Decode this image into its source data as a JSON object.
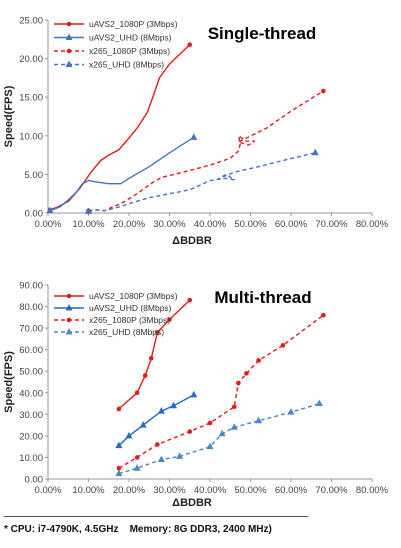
{
  "chart_data": [
    {
      "type": "line",
      "title": "Single-thread",
      "xlabel": "ΔBDBR",
      "ylabel": "Speed(FPS)",
      "xlim": [
        0,
        80
      ],
      "ylim": [
        0,
        25
      ],
      "x_ticks": [
        "0.00%",
        "10.00%",
        "20.00%",
        "30.00%",
        "40.00%",
        "50.00%",
        "60.00%",
        "70.00%",
        "80.00%"
      ],
      "y_ticks": [
        "0.00",
        "5.00",
        "10.00",
        "15.00",
        "20.00",
        "25.00"
      ],
      "legend_position": "top-left",
      "series": [
        {
          "name": "uAVS2_1080P (3Mbps)",
          "color": "#e21b1b",
          "dash": "solid",
          "marker": "circle",
          "points": [
            [
              0.5,
              0.4
            ],
            [
              2.5,
              0.8
            ],
            [
              5,
              1.5
            ],
            [
              8,
              3.3
            ],
            [
              10.5,
              5.2
            ],
            [
              13,
              6.8
            ],
            [
              15,
              7.5
            ],
            [
              17.5,
              8.2
            ],
            [
              20,
              9.7
            ],
            [
              22,
              11
            ],
            [
              24.5,
              13
            ],
            [
              26,
              15.2
            ],
            [
              27.5,
              17.5
            ],
            [
              30,
              19.3
            ],
            [
              32,
              20.3
            ],
            [
              35,
              21.8
            ]
          ]
        },
        {
          "name": "uAVS2_UHD (8Mbps)",
          "color": "#4472c4",
          "dash": "solid",
          "marker": "triangle",
          "points": [
            [
              0.5,
              0.3
            ],
            [
              3,
              0.8
            ],
            [
              5,
              1.7
            ],
            [
              7,
              2.7
            ],
            [
              8.5,
              3.8
            ],
            [
              10,
              4.2
            ],
            [
              12,
              4
            ],
            [
              15,
              3.8
            ],
            [
              18,
              3.8
            ],
            [
              20,
              4.5
            ],
            [
              25,
              6
            ],
            [
              30,
              7.8
            ],
            [
              36,
              9.8
            ]
          ]
        },
        {
          "name": "x265_1080P (3Mbps)",
          "color": "#e21b1b",
          "dash": "dashed",
          "marker": "circle",
          "points": [
            [
              10,
              0.3
            ],
            [
              12,
              0.4
            ],
            [
              14,
              0.3
            ],
            [
              16,
              0.8
            ],
            [
              18,
              1.2
            ],
            [
              22,
              2.5
            ],
            [
              26,
              4
            ],
            [
              28,
              4.6
            ],
            [
              35,
              5.5
            ],
            [
              40,
              6.2
            ],
            [
              45,
              7.1
            ],
            [
              47,
              8
            ],
            [
              47.5,
              9
            ],
            [
              47,
              10
            ],
            [
              49,
              9.3
            ],
            [
              51,
              9.3
            ],
            [
              49.5,
              8.8
            ],
            [
              47,
              9.2
            ],
            [
              54,
              11
            ],
            [
              60,
              13.2
            ],
            [
              68,
              15.8
            ]
          ]
        },
        {
          "name": "x265_UHD (8Mbps)",
          "color": "#4472c4",
          "dash": "dashed",
          "marker": "triangle",
          "points": [
            [
              10,
              0.2
            ],
            [
              12,
              0.4
            ],
            [
              14,
              0.3
            ],
            [
              17,
              0.7
            ],
            [
              20,
              1.2
            ],
            [
              25,
              2
            ],
            [
              30,
              2.5
            ],
            [
              35,
              3
            ],
            [
              40,
              4.2
            ],
            [
              44,
              4.5
            ],
            [
              46,
              4.3
            ],
            [
              44,
              5
            ],
            [
              42,
              4.4
            ],
            [
              46,
              5.3
            ],
            [
              52,
              6
            ],
            [
              58,
              6.8
            ],
            [
              66,
              7.8
            ]
          ]
        }
      ]
    },
    {
      "type": "line",
      "title": "Multi-thread",
      "xlabel": "ΔBDBR",
      "ylabel": "Speed(FPS)",
      "xlim": [
        0,
        80
      ],
      "ylim": [
        0,
        90
      ],
      "x_ticks": [
        "0.00%",
        "10.00%",
        "20.00%",
        "30.00%",
        "40.00%",
        "50.00%",
        "60.00%",
        "70.00%",
        "80.00%"
      ],
      "y_ticks": [
        "0.00",
        "10.00",
        "20.00",
        "30.00",
        "40.00",
        "50.00",
        "60.00",
        "70.00",
        "80.00",
        "90.00"
      ],
      "legend_position": "top-left",
      "series": [
        {
          "name": "uAVS2_1080P (3Mbps)",
          "color": "#e21b1b",
          "dash": "solid",
          "marker": "circle",
          "points": [
            [
              17.5,
              32.5
            ],
            [
              22,
              40
            ],
            [
              24,
              48
            ],
            [
              25.5,
              56
            ],
            [
              27,
              68
            ],
            [
              30,
              74
            ],
            [
              35,
              83
            ]
          ]
        },
        {
          "name": "uAVS2_UHD (8Mbps)",
          "color": "#1f6cc2",
          "dash": "solid",
          "marker": "triangle",
          "points": [
            [
              17.5,
              15.5
            ],
            [
              20,
              20
            ],
            [
              23.5,
              25
            ],
            [
              28,
              31.5
            ],
            [
              31,
              34
            ],
            [
              36,
              39
            ]
          ]
        },
        {
          "name": "x265_1080P (3Mbps)",
          "color": "#e21b1b",
          "dash": "dashed",
          "marker": "circle",
          "points": [
            [
              17.5,
              5
            ],
            [
              22,
              10
            ],
            [
              27,
              16
            ],
            [
              35,
              22
            ],
            [
              40,
              26
            ],
            [
              46,
              33.5
            ],
            [
              47,
              44.5
            ],
            [
              49,
              49
            ],
            [
              52,
              55
            ],
            [
              58,
              62
            ],
            [
              68,
              76
            ]
          ]
        },
        {
          "name": "x265_UHD (8Mbps)",
          "color": "#4a86c8",
          "dash": "dashed",
          "marker": "triangle",
          "points": [
            [
              17.5,
              2.5
            ],
            [
              22,
              5
            ],
            [
              28,
              9
            ],
            [
              32.5,
              10.5
            ],
            [
              40,
              15
            ],
            [
              43,
              21
            ],
            [
              46,
              24
            ],
            [
              52,
              27
            ],
            [
              60,
              31
            ],
            [
              67,
              35
            ]
          ]
        }
      ]
    }
  ],
  "footnote": "* CPU: i7-4790K, 4.5GHz    Memory: 8G DDR3, 2400 MHz)"
}
